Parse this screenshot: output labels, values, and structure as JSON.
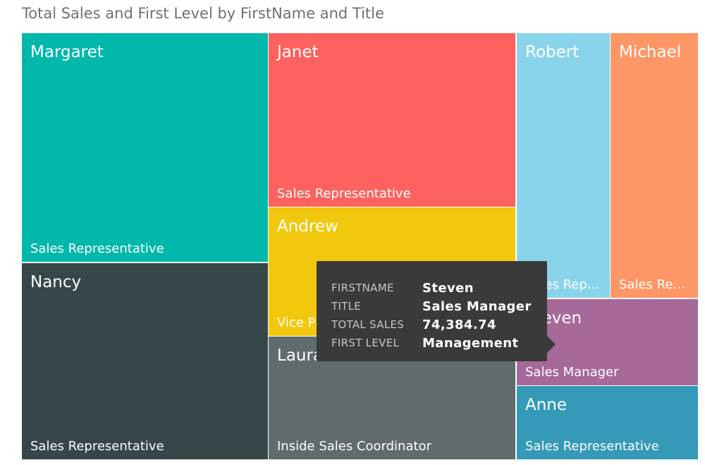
{
  "chart_data": {
    "type": "treemap",
    "title": "Total Sales and First Level by FirstName and Title",
    "value_field": "Total Sales",
    "fields": [
      "FirstName",
      "Title"
    ],
    "tiles": [
      {
        "name": "Margaret",
        "title": "Sales Representative",
        "color": "#01b8aa",
        "relative_share": 0.164
      },
      {
        "name": "Nancy",
        "title": "Sales Representative",
        "color": "#374649",
        "relative_share": 0.15
      },
      {
        "name": "Janet",
        "title": "Sales Representative",
        "color": "#fd625e",
        "relative_share": 0.14
      },
      {
        "name": "Andrew",
        "title": "Vice P",
        "color": "#f2c80f",
        "relative_share": 0.104
      },
      {
        "name": "Laura",
        "title": "Inside Sales Coordinator",
        "color": "#5f6b6d",
        "relative_share": 0.103
      },
      {
        "name": "Robert",
        "title": "Sales Rep...",
        "color": "#8ad4eb",
        "relative_share": 0.082
      },
      {
        "name": "Michael",
        "title": "Sales Re...",
        "color": "#fe9666",
        "relative_share": 0.082
      },
      {
        "name": "Steven",
        "title": "Sales Manager",
        "color": "#a66999",
        "relative_share": 0.061,
        "value": 74384.74
      },
      {
        "name": "Anne",
        "title": "Sales Representative",
        "color": "#3599b8",
        "relative_share": 0.068
      }
    ]
  },
  "tooltip": {
    "rows": [
      {
        "key": "FIRSTNAME",
        "value": "Steven"
      },
      {
        "key": "TITLE",
        "value": "Sales Manager"
      },
      {
        "key": "TOTAL SALES",
        "value": "74,384.74"
      },
      {
        "key": "FIRST LEVEL",
        "value": "Management"
      }
    ]
  }
}
